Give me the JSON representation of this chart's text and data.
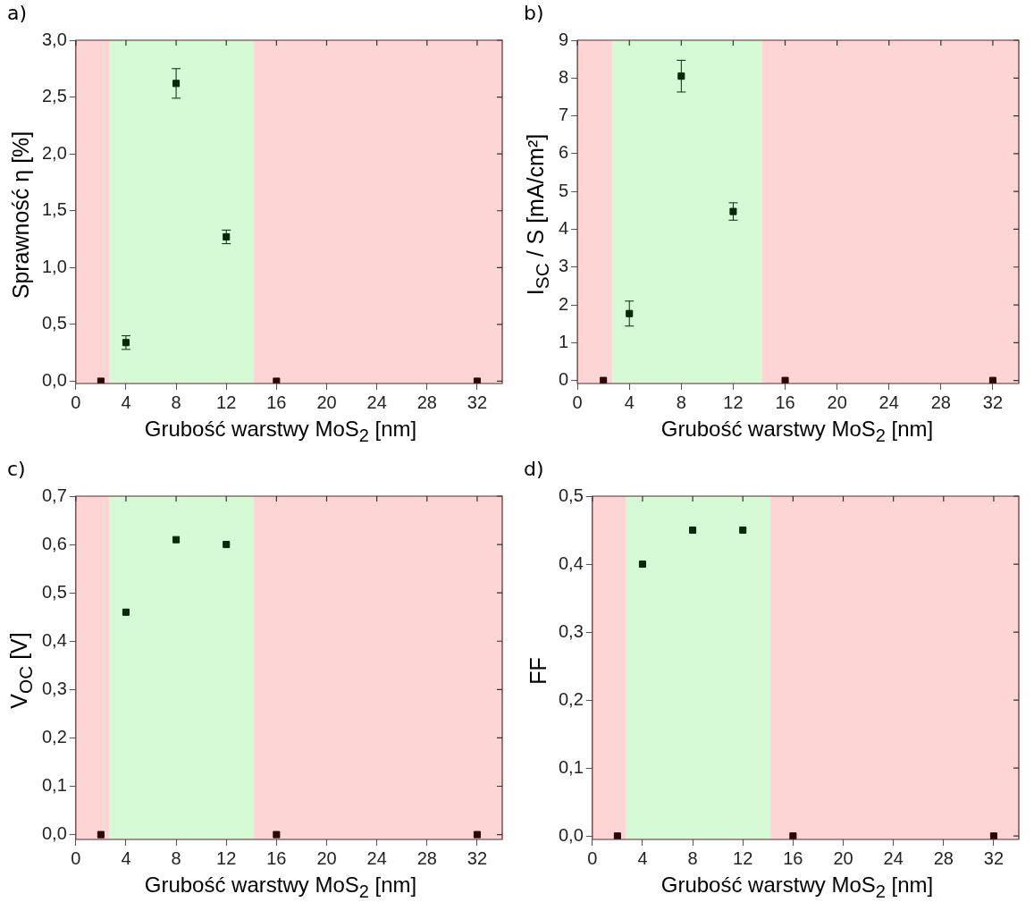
{
  "chart_data": [
    {
      "type": "scatter",
      "title": "a)",
      "xlabel": "Grubość warstwy MoS$_{2}$ [nm]",
      "ylabel": "Sprawność η [%]",
      "x": [
        2,
        4,
        8,
        12,
        16,
        32
      ],
      "marker": "square",
      "grid": false,
      "series": [
        {
          "values": [
            0,
            0.34,
            2.62,
            1.27,
            0,
            0
          ],
          "errors": [
            null,
            0.06,
            0.13,
            0.06,
            null,
            null
          ],
          "colors": [
            "#2a0808",
            "#062806",
            "#062806",
            "#062806",
            "#2a0808",
            "#2a0808"
          ]
        }
      ],
      "xlim": [
        0,
        34
      ],
      "xticks": [
        0,
        4,
        8,
        12,
        16,
        20,
        24,
        28,
        32
      ],
      "ylim": [
        -0.02,
        3.0
      ],
      "yticks": [
        {
          "value": 0,
          "label": "0,0"
        },
        {
          "value": 0.5,
          "label": "0,5"
        },
        {
          "value": 1,
          "label": "1,0"
        },
        {
          "value": 1.5,
          "label": "1,5"
        },
        {
          "value": 2,
          "label": "2,0"
        },
        {
          "value": 2.5,
          "label": "2,5"
        },
        {
          "value": 3,
          "label": "3,0"
        }
      ],
      "bands": [
        {
          "axis": "x",
          "from": 0,
          "to": 2.7,
          "color": "#fdd5d5"
        },
        {
          "axis": "x",
          "from": 2.7,
          "to": 14.2,
          "color": "#d5fad5"
        },
        {
          "axis": "x",
          "from": 14.2,
          "to": 34,
          "color": "#fdd5d5"
        }
      ]
    },
    {
      "type": "scatter",
      "title": "b)",
      "xlabel": "Grubość warstwy MoS$_{2}$ [nm]",
      "ylabel": "I$_{SC}$ / S [mA/cm²]",
      "x": [
        2,
        4,
        8,
        12,
        16,
        32
      ],
      "marker": "square",
      "grid": false,
      "series": [
        {
          "values": [
            0,
            1.77,
            8.05,
            4.47,
            0,
            0
          ],
          "errors": [
            null,
            0.33,
            0.42,
            0.23,
            null,
            null
          ],
          "colors": [
            "#2a0808",
            "#062806",
            "#062806",
            "#062806",
            "#2a0808",
            "#2a0808"
          ]
        }
      ],
      "xlim": [
        0,
        34
      ],
      "xticks": [
        0,
        4,
        8,
        12,
        16,
        20,
        24,
        28,
        32
      ],
      "ylim": [
        -0.08,
        9
      ],
      "yticks": [
        0,
        1,
        2,
        3,
        4,
        5,
        6,
        7,
        8,
        9
      ],
      "bands": [
        {
          "axis": "x",
          "from": 0,
          "to": 2.7,
          "color": "#fdd5d5"
        },
        {
          "axis": "x",
          "from": 2.7,
          "to": 14.2,
          "color": "#d5fad5"
        },
        {
          "axis": "x",
          "from": 14.2,
          "to": 34,
          "color": "#fdd5d5"
        }
      ]
    },
    {
      "type": "scatter",
      "title": "c)",
      "xlabel": "Grubość warstwy MoS$_{2}$ [nm]",
      "ylabel": "V$_{OC}$ [V]",
      "x": [
        2,
        4,
        8,
        12,
        16,
        32
      ],
      "marker": "square",
      "grid": false,
      "series": [
        {
          "values": [
            0,
            0.46,
            0.61,
            0.6,
            0,
            0
          ],
          "colors": [
            "#2a0808",
            "#062806",
            "#062806",
            "#062806",
            "#2a0808",
            "#2a0808"
          ]
        }
      ],
      "xlim": [
        0,
        34
      ],
      "xticks": [
        0,
        4,
        8,
        12,
        16,
        20,
        24,
        28,
        32
      ],
      "ylim": [
        -0.01,
        0.7
      ],
      "yticks": [
        {
          "value": 0,
          "label": "0,0"
        },
        {
          "value": 0.1,
          "label": "0,1"
        },
        {
          "value": 0.2,
          "label": "0,2"
        },
        {
          "value": 0.3,
          "label": "0,3"
        },
        {
          "value": 0.4,
          "label": "0,4"
        },
        {
          "value": 0.5,
          "label": "0,5"
        },
        {
          "value": 0.6,
          "label": "0,6"
        },
        {
          "value": 0.7,
          "label": "0,7"
        }
      ],
      "bands": [
        {
          "axis": "x",
          "from": 0,
          "to": 2.7,
          "color": "#fdd5d5"
        },
        {
          "axis": "x",
          "from": 2.7,
          "to": 14.2,
          "color": "#d5fad5"
        },
        {
          "axis": "x",
          "from": 14.2,
          "to": 34,
          "color": "#fdd5d5"
        }
      ]
    },
    {
      "type": "scatter",
      "title": "d)",
      "xlabel": "Grubość warstwy MoS$_{2}$ [nm]",
      "ylabel": "FF",
      "x": [
        2,
        4,
        8,
        12,
        16,
        32
      ],
      "marker": "square",
      "grid": false,
      "series": [
        {
          "values": [
            0,
            0.4,
            0.45,
            0.45,
            0,
            0
          ],
          "colors": [
            "#2a0808",
            "#062806",
            "#062806",
            "#062806",
            "#2a0808",
            "#2a0808"
          ]
        }
      ],
      "xlim": [
        0,
        34
      ],
      "xticks": [
        0,
        4,
        8,
        12,
        16,
        20,
        24,
        28,
        32
      ],
      "ylim": [
        -0.005,
        0.5
      ],
      "yticks": [
        {
          "value": 0,
          "label": "0,0"
        },
        {
          "value": 0.1,
          "label": "0,1"
        },
        {
          "value": 0.2,
          "label": "0,2"
        },
        {
          "value": 0.3,
          "label": "0,3"
        },
        {
          "value": 0.4,
          "label": "0,4"
        },
        {
          "value": 0.5,
          "label": "0,5"
        }
      ],
      "bands": [
        {
          "axis": "x",
          "from": 0,
          "to": 2.7,
          "color": "#fdd5d5"
        },
        {
          "axis": "x",
          "from": 2.7,
          "to": 14.2,
          "color": "#d5fad5"
        },
        {
          "axis": "x",
          "from": 14.2,
          "to": 34,
          "color": "#fdd5d5"
        }
      ]
    }
  ]
}
